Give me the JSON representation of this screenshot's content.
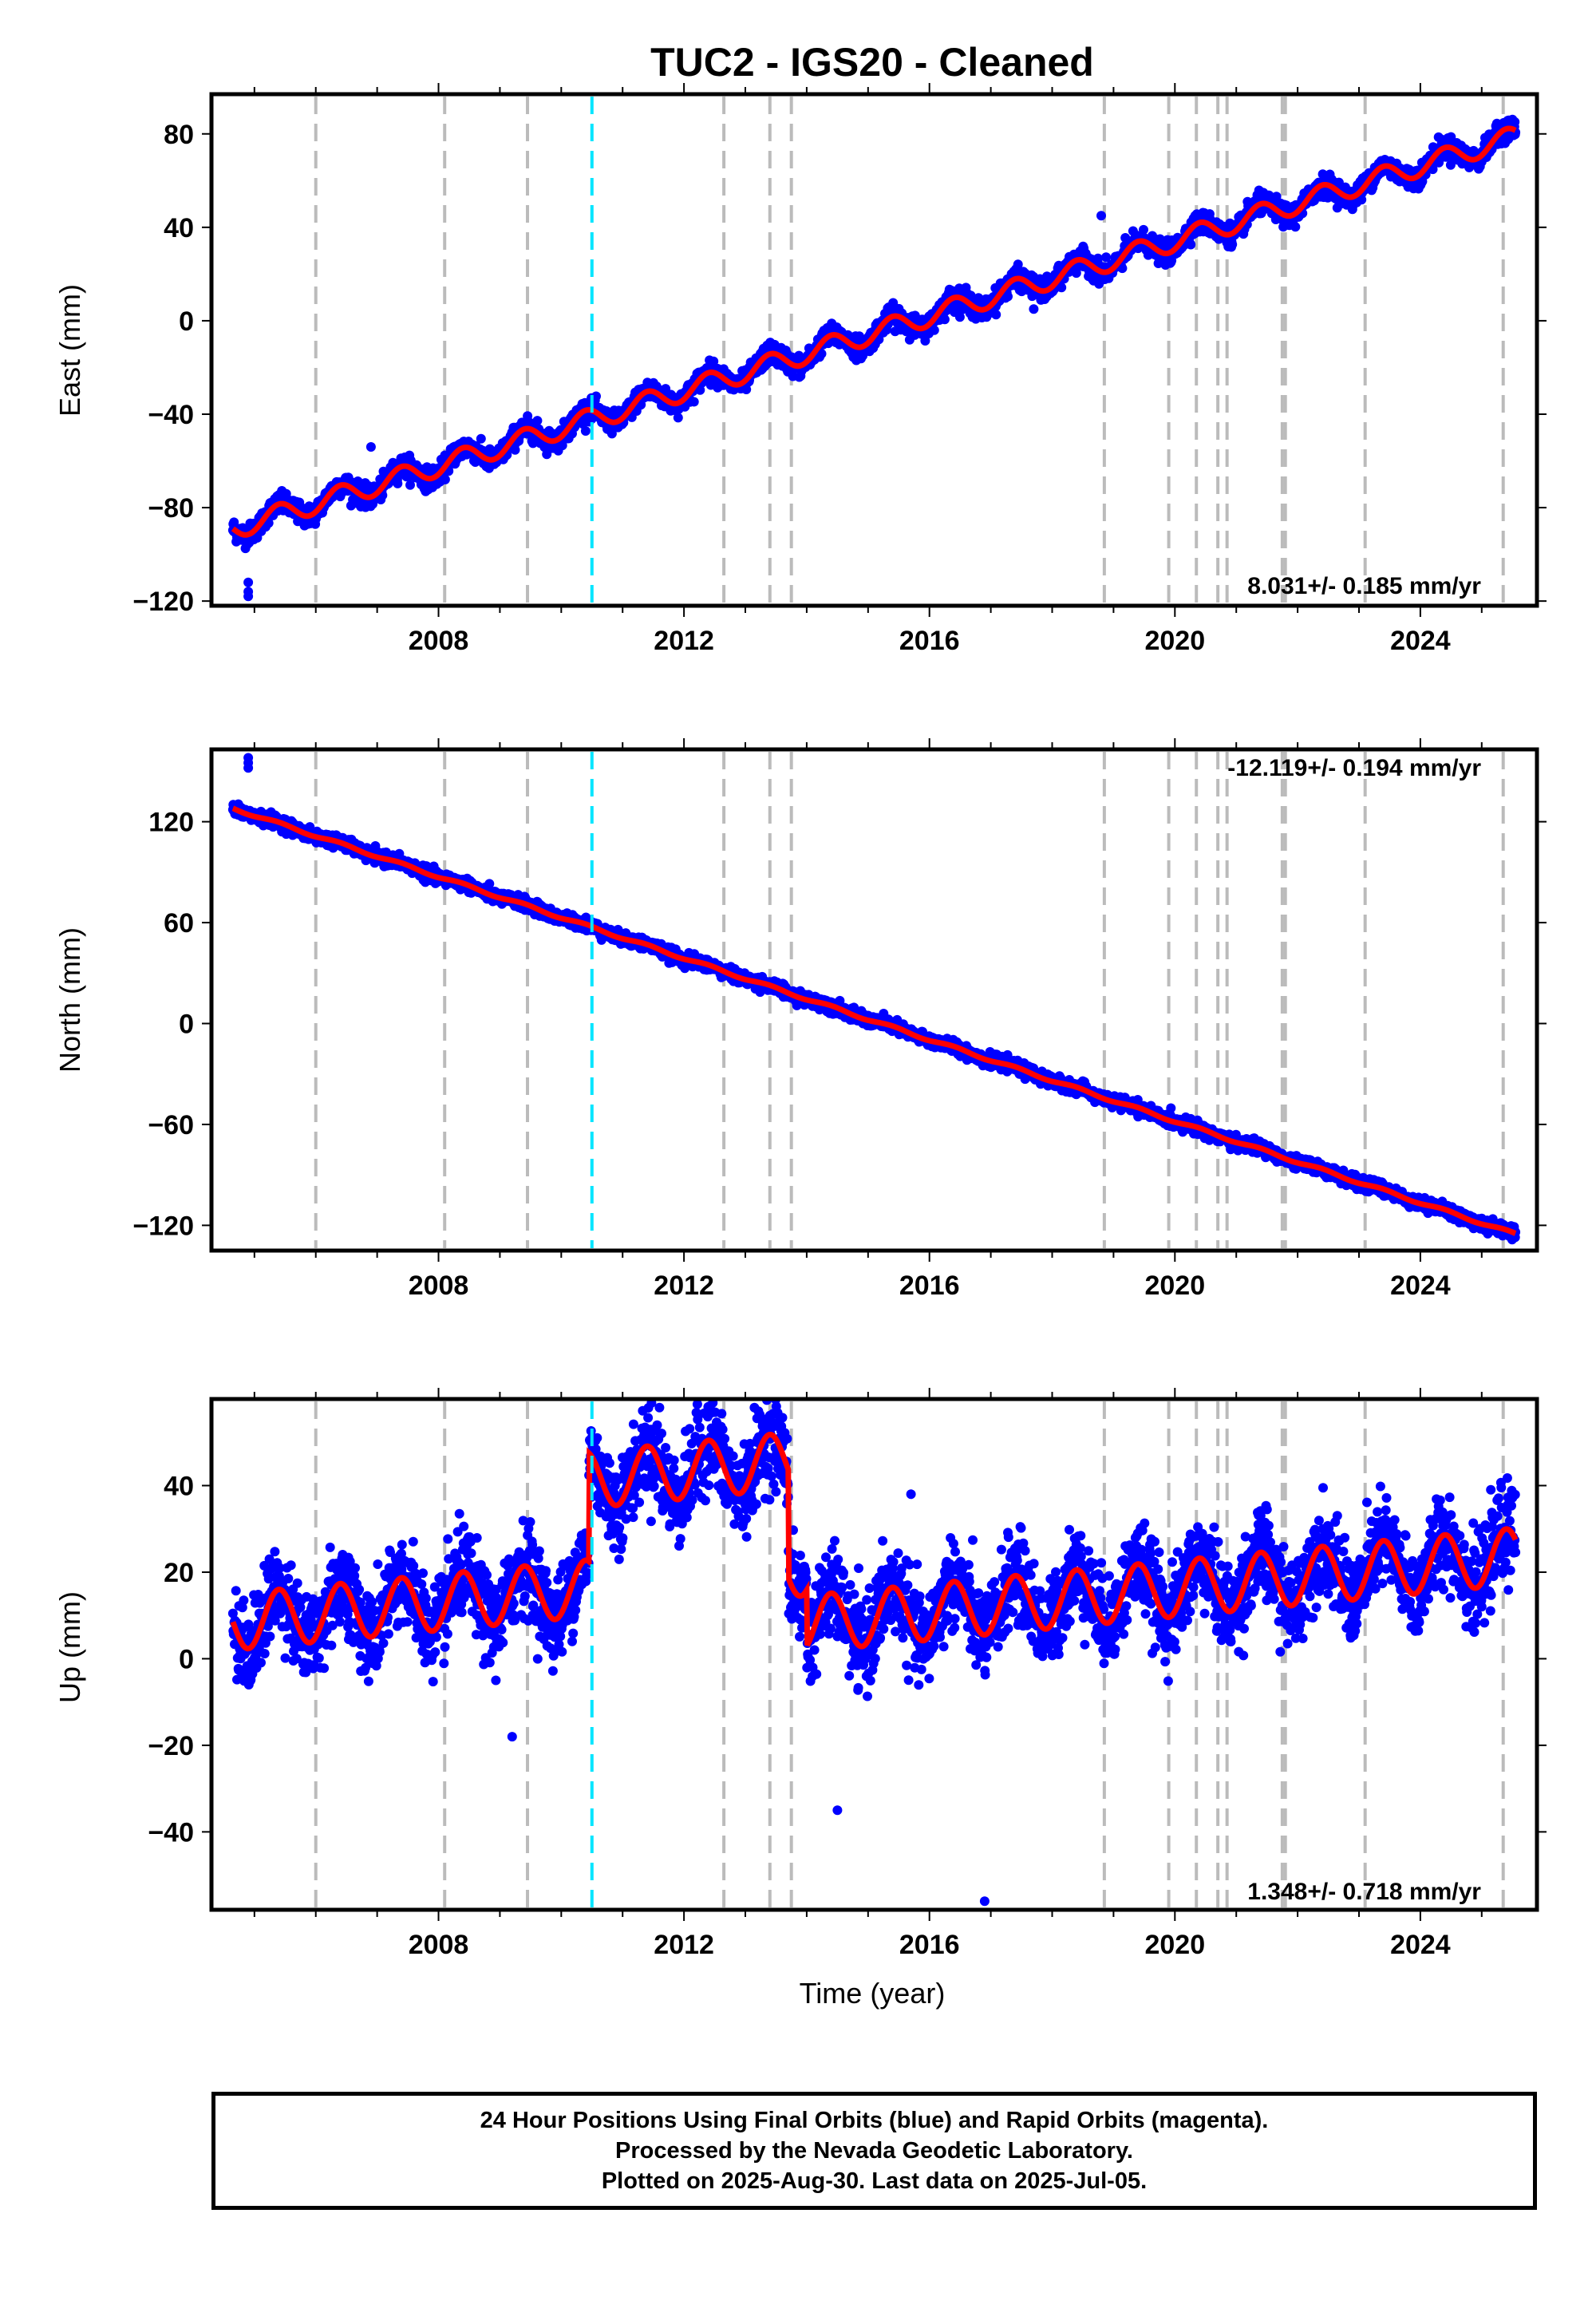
{
  "title": "TUC2  - IGS20 - Cleaned",
  "xlabel": "Time (year)",
  "footer": {
    "line1": "24 Hour Positions Using Final Orbits (blue) and Rapid Orbits (magenta).",
    "line2": "Processed by the Nevada Geodetic Laboratory.",
    "line3": "Plotted on 2025-Aug-30. Last data on 2025-Jul-05."
  },
  "colors": {
    "data": "#0000ff",
    "model": "#ff0000",
    "event_line": "#bbbbbb",
    "equipment_line": "#00e5ff"
  },
  "chart_data": [
    {
      "type": "scatter",
      "name": "east",
      "ylabel": "East (mm)",
      "xlim": [
        2004.3,
        2025.9
      ],
      "ylim": [
        -122,
        97
      ],
      "xticks": [
        2008,
        2012,
        2016,
        2020,
        2024
      ],
      "yticks": [
        -120,
        -80,
        -40,
        0,
        40,
        80
      ],
      "rate_label": "8.031+/- 0.185 mm/yr",
      "rate": 8.031,
      "rate_sigma": 0.185,
      "value_at_start": -89,
      "annual_amplitude": 4.5,
      "noise": 2.2,
      "offsets": [],
      "outliers": [
        {
          "x": 2004.9,
          "y": -112
        },
        {
          "x": 2004.9,
          "y": -116
        },
        {
          "x": 2004.9,
          "y": -118
        },
        {
          "x": 2006.9,
          "y": -54
        },
        {
          "x": 2017.7,
          "y": 5
        },
        {
          "x": 2018.8,
          "y": 45
        }
      ]
    },
    {
      "type": "scatter",
      "name": "north",
      "ylabel": "North (mm)",
      "xlim": [
        2004.3,
        2025.9
      ],
      "ylim": [
        -135,
        163
      ],
      "xticks": [
        2008,
        2012,
        2016,
        2020,
        2024
      ],
      "yticks": [
        -120,
        -60,
        0,
        60,
        120
      ],
      "rate_label": "-12.119+/- 0.194 mm/yr",
      "rate": -12.119,
      "rate_sigma": 0.194,
      "value_at_start": 128,
      "annual_amplitude": 0.8,
      "noise": 1.8,
      "offsets": [],
      "outliers": [
        {
          "x": 2004.9,
          "y": 155
        },
        {
          "x": 2004.9,
          "y": 158
        },
        {
          "x": 2004.9,
          "y": 152
        }
      ]
    },
    {
      "type": "scatter",
      "name": "up",
      "ylabel": "Up (mm)",
      "xlim": [
        2004.3,
        2025.9
      ],
      "ylim": [
        -58,
        60
      ],
      "xticks": [
        2008,
        2012,
        2016,
        2020,
        2024
      ],
      "yticks": [
        -40,
        -20,
        0,
        20,
        40
      ],
      "rate_label": "1.348+/- 0.718 mm/yr",
      "rate": 1.348,
      "rate_sigma": 0.718,
      "value_at_start": 8.5,
      "annual_amplitude": 6.5,
      "noise": 5,
      "offsets": [
        {
          "x": 2010.45,
          "y": 25
        },
        {
          "x": 2013.7,
          "y": -25
        },
        {
          "x": 2014.0,
          "y": -13
        }
      ],
      "outliers": [
        {
          "x": 2009.2,
          "y": -18
        },
        {
          "x": 2011.6,
          "y": 58
        },
        {
          "x": 2013.4,
          "y": 54
        },
        {
          "x": 2014.5,
          "y": -35
        },
        {
          "x": 2016.9,
          "y": -56
        },
        {
          "x": 2015.7,
          "y": 38
        }
      ]
    }
  ],
  "event_lines": [
    2006.0,
    2008.1,
    2009.45,
    2012.65,
    2013.4,
    2013.75,
    2018.85,
    2019.9,
    2020.35,
    2020.7,
    2020.85,
    2021.75,
    2021.8,
    2023.1,
    2025.35
  ],
  "equipment_lines": [
    2010.5
  ]
}
